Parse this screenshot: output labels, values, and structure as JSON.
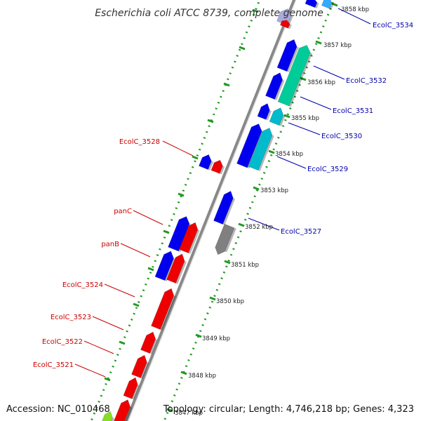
{
  "title": "Escherichia coli ATCC 8739, complete genome",
  "footer": {
    "accession": "Accession: NC_010468",
    "topology": "Topology: circular; Length: 4,746,218 bp; Genes: 4,323"
  },
  "colors": {
    "label_left": "#cc0000",
    "label_right": "#0000aa",
    "backbone": "#888888",
    "dots": "#229922",
    "forward_cds": "#0000ee",
    "reverse_cds": "#ee0000",
    "rna": "#00cc99",
    "teal": "#00bbcc",
    "gray": "#808080"
  },
  "ticks": [
    {
      "label": "3858 kbp"
    },
    {
      "label": "3857 kbp"
    },
    {
      "label": "3856 kbp"
    },
    {
      "label": "3855 kbp"
    },
    {
      "label": "3854 kbp"
    },
    {
      "label": "3853 kbp"
    },
    {
      "label": "3852 kbp"
    },
    {
      "label": "3851 kbp"
    },
    {
      "label": "3850 kbp"
    },
    {
      "label": "3849 kbp"
    },
    {
      "label": "3848 kbp"
    },
    {
      "label": "3847 kbp"
    }
  ],
  "labels_left": [
    {
      "text": "EcolC_3528"
    },
    {
      "text": "panC"
    },
    {
      "text": "panB"
    },
    {
      "text": "EcolC_3524"
    },
    {
      "text": "EcolC_3523"
    },
    {
      "text": "EcolC_3522"
    },
    {
      "text": "EcolC_3521"
    }
  ],
  "labels_right": [
    {
      "text": "EcolC_3534"
    },
    {
      "text": "EcolC_3532"
    },
    {
      "text": "EcolC_3531"
    },
    {
      "text": "EcolC_3530"
    },
    {
      "text": "EcolC_3529"
    },
    {
      "text": "EcolC_3527"
    }
  ]
}
